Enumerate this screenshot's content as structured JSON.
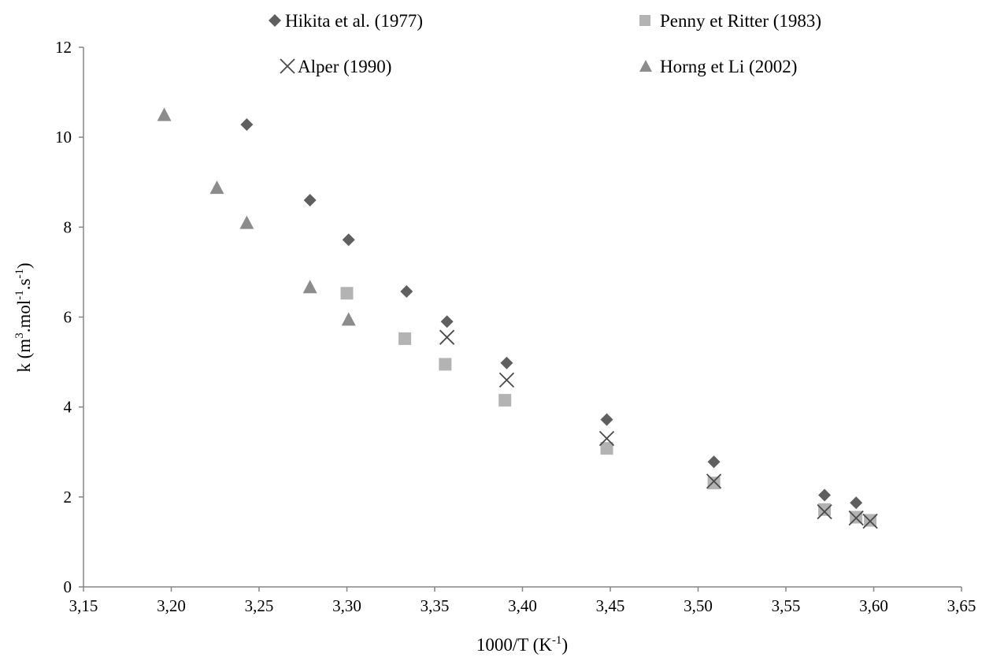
{
  "chart_data": {
    "type": "scatter",
    "xlabel": {
      "base": "1000/T  (K",
      "sup": "-1",
      "tail": ")"
    },
    "ylabel": {
      "parts": [
        "k  (m",
        "3",
        ".mol",
        "-1",
        ".s",
        "-1",
        ")"
      ]
    },
    "xlim": [
      3.15,
      3.65
    ],
    "ylim": [
      0,
      12
    ],
    "x_ticks": [
      "3,15",
      "3,20",
      "3,25",
      "3,30",
      "3,35",
      "3,40",
      "3,45",
      "3,50",
      "3,55",
      "3,60",
      "3,65"
    ],
    "y_ticks": [
      "0",
      "2",
      "4",
      "6",
      "8",
      "10",
      "12"
    ],
    "grid": false,
    "legend_position": "top",
    "series": [
      {
        "name": "Hikita et al. (1977)",
        "marker": "diamond",
        "color": "#5f5f5f",
        "points": [
          [
            3.243,
            10.28
          ],
          [
            3.279,
            8.6
          ],
          [
            3.301,
            7.72
          ],
          [
            3.334,
            6.57
          ],
          [
            3.357,
            5.9
          ],
          [
            3.391,
            4.98
          ],
          [
            3.448,
            3.72
          ],
          [
            3.509,
            2.78
          ],
          [
            3.572,
            2.04
          ],
          [
            3.59,
            1.87
          ]
        ]
      },
      {
        "name": "Penny et Ritter (1983)",
        "marker": "square",
        "color": "#b3b3b3",
        "points": [
          [
            3.3,
            6.53
          ],
          [
            3.333,
            5.52
          ],
          [
            3.356,
            4.95
          ],
          [
            3.39,
            4.15
          ],
          [
            3.448,
            3.08
          ],
          [
            3.509,
            2.31
          ],
          [
            3.572,
            1.72
          ],
          [
            3.59,
            1.55
          ],
          [
            3.598,
            1.48
          ]
        ]
      },
      {
        "name": "Alper (1990)",
        "marker": "cross",
        "color": "#4a4a4a",
        "points": [
          [
            3.357,
            5.55
          ],
          [
            3.391,
            4.6
          ],
          [
            3.448,
            3.3
          ],
          [
            3.509,
            2.35
          ],
          [
            3.572,
            1.67
          ],
          [
            3.59,
            1.53
          ],
          [
            3.598,
            1.46
          ]
        ]
      },
      {
        "name": "Horng et Li (2002)",
        "marker": "triangle",
        "color": "#8c8c8c",
        "points": [
          [
            3.196,
            10.5
          ],
          [
            3.226,
            8.88
          ],
          [
            3.243,
            8.1
          ],
          [
            3.279,
            6.67
          ],
          [
            3.301,
            5.95
          ]
        ]
      }
    ]
  }
}
